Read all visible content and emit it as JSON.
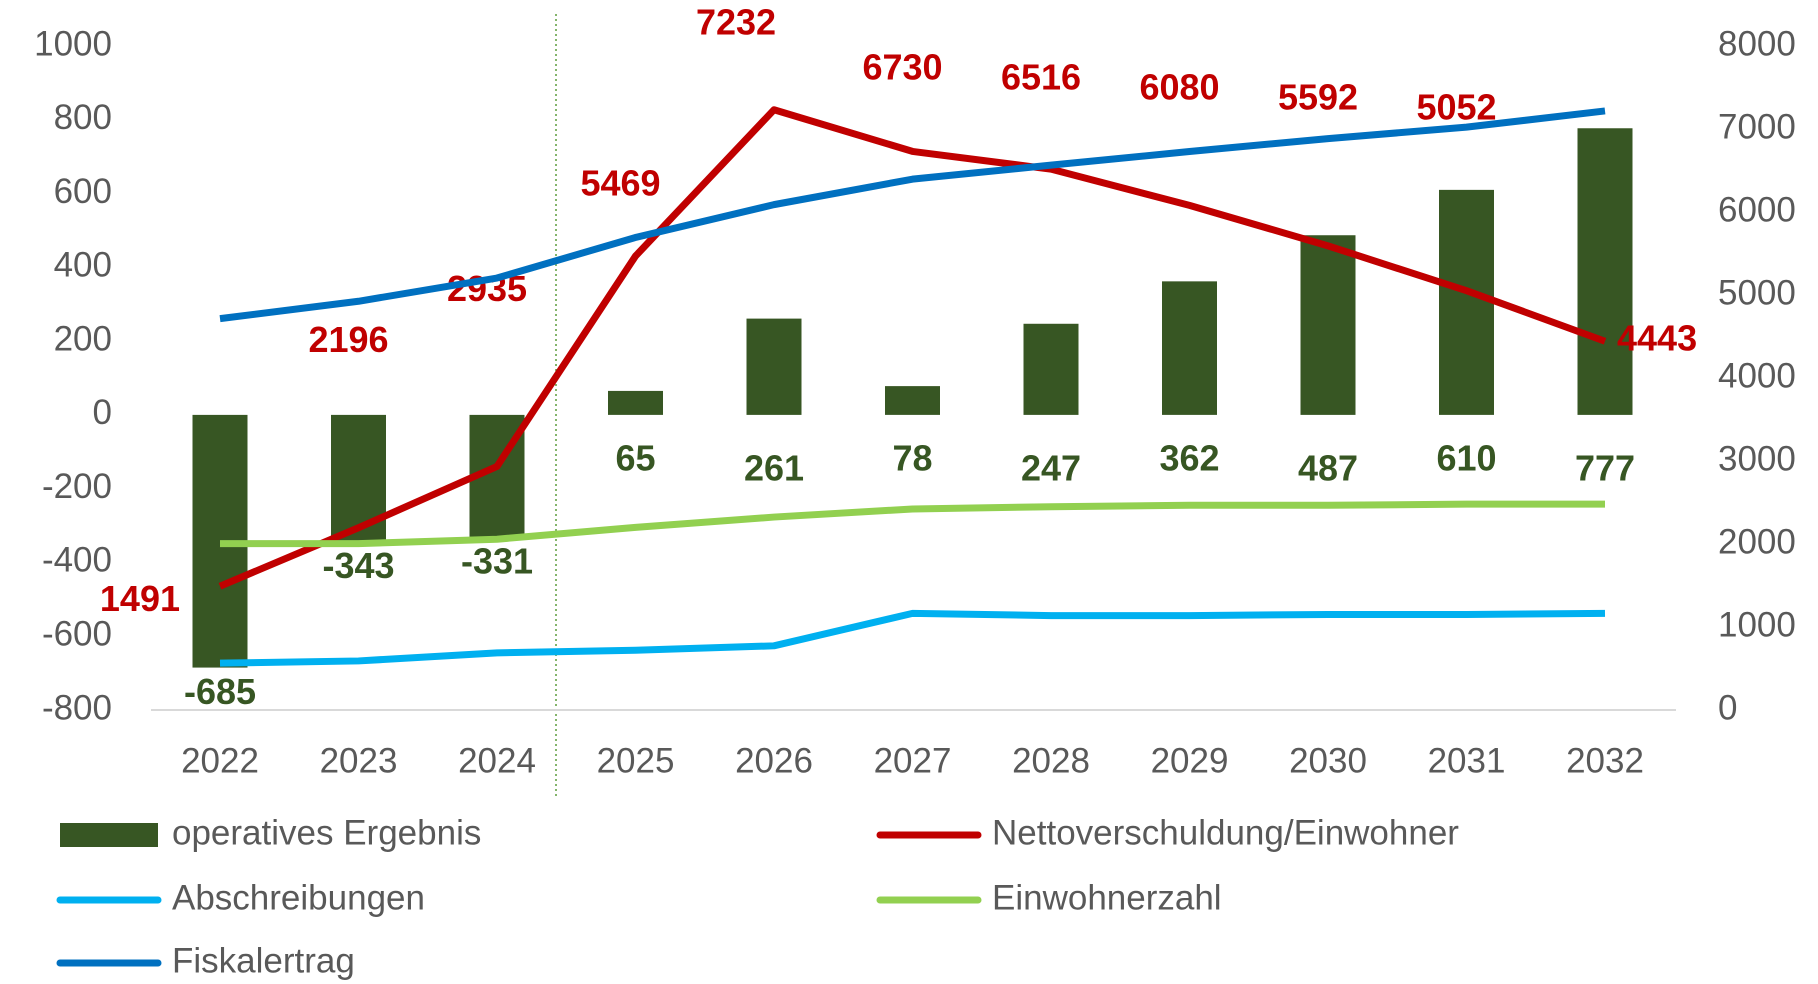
{
  "chart_data": {
    "type": "bar",
    "categories": [
      "2022",
      "2023",
      "2024",
      "2025",
      "2026",
      "2027",
      "2028",
      "2029",
      "2030",
      "2031",
      "2032"
    ],
    "ylim": [
      -800,
      1000
    ],
    "yticks": [
      -800,
      -600,
      -400,
      -200,
      0,
      200,
      400,
      600,
      800,
      1000
    ],
    "y2lim": [
      0,
      8000
    ],
    "y2ticks": [
      0,
      1000,
      2000,
      3000,
      4000,
      5000,
      6000,
      7000,
      8000
    ],
    "series": [
      {
        "name": "operatives Ergebnis",
        "type": "bar",
        "color": "#375623",
        "values": [
          -685,
          -343,
          -331,
          65,
          261,
          78,
          247,
          362,
          487,
          610,
          777
        ]
      },
      {
        "name": "Nettoverschuldung/Einwohner",
        "type": "line",
        "axis": "y2",
        "color": "#c00000",
        "values": [
          1491,
          2196,
          2935,
          5469,
          7232,
          6730,
          6516,
          6080,
          5592,
          5052,
          4443
        ]
      },
      {
        "name": "Abschreibungen",
        "type": "line",
        "color": "#00b0f0",
        "values": [
          -673,
          -667,
          -645,
          -638,
          -626,
          -538,
          -544,
          -544,
          -541,
          -541,
          -538
        ]
      },
      {
        "name": "Einwohnerzahl",
        "type": "line",
        "color": "#92d050",
        "values": [
          -349,
          -349,
          -337,
          -305,
          -277,
          -255,
          -249,
          -245,
          -245,
          -242,
          -242
        ]
      },
      {
        "name": "Fiskalertrag",
        "type": "line",
        "color": "#0070c0",
        "values": [
          261,
          308,
          371,
          481,
          570,
          639,
          677,
          714,
          749,
          780,
          824
        ]
      }
    ]
  }
}
